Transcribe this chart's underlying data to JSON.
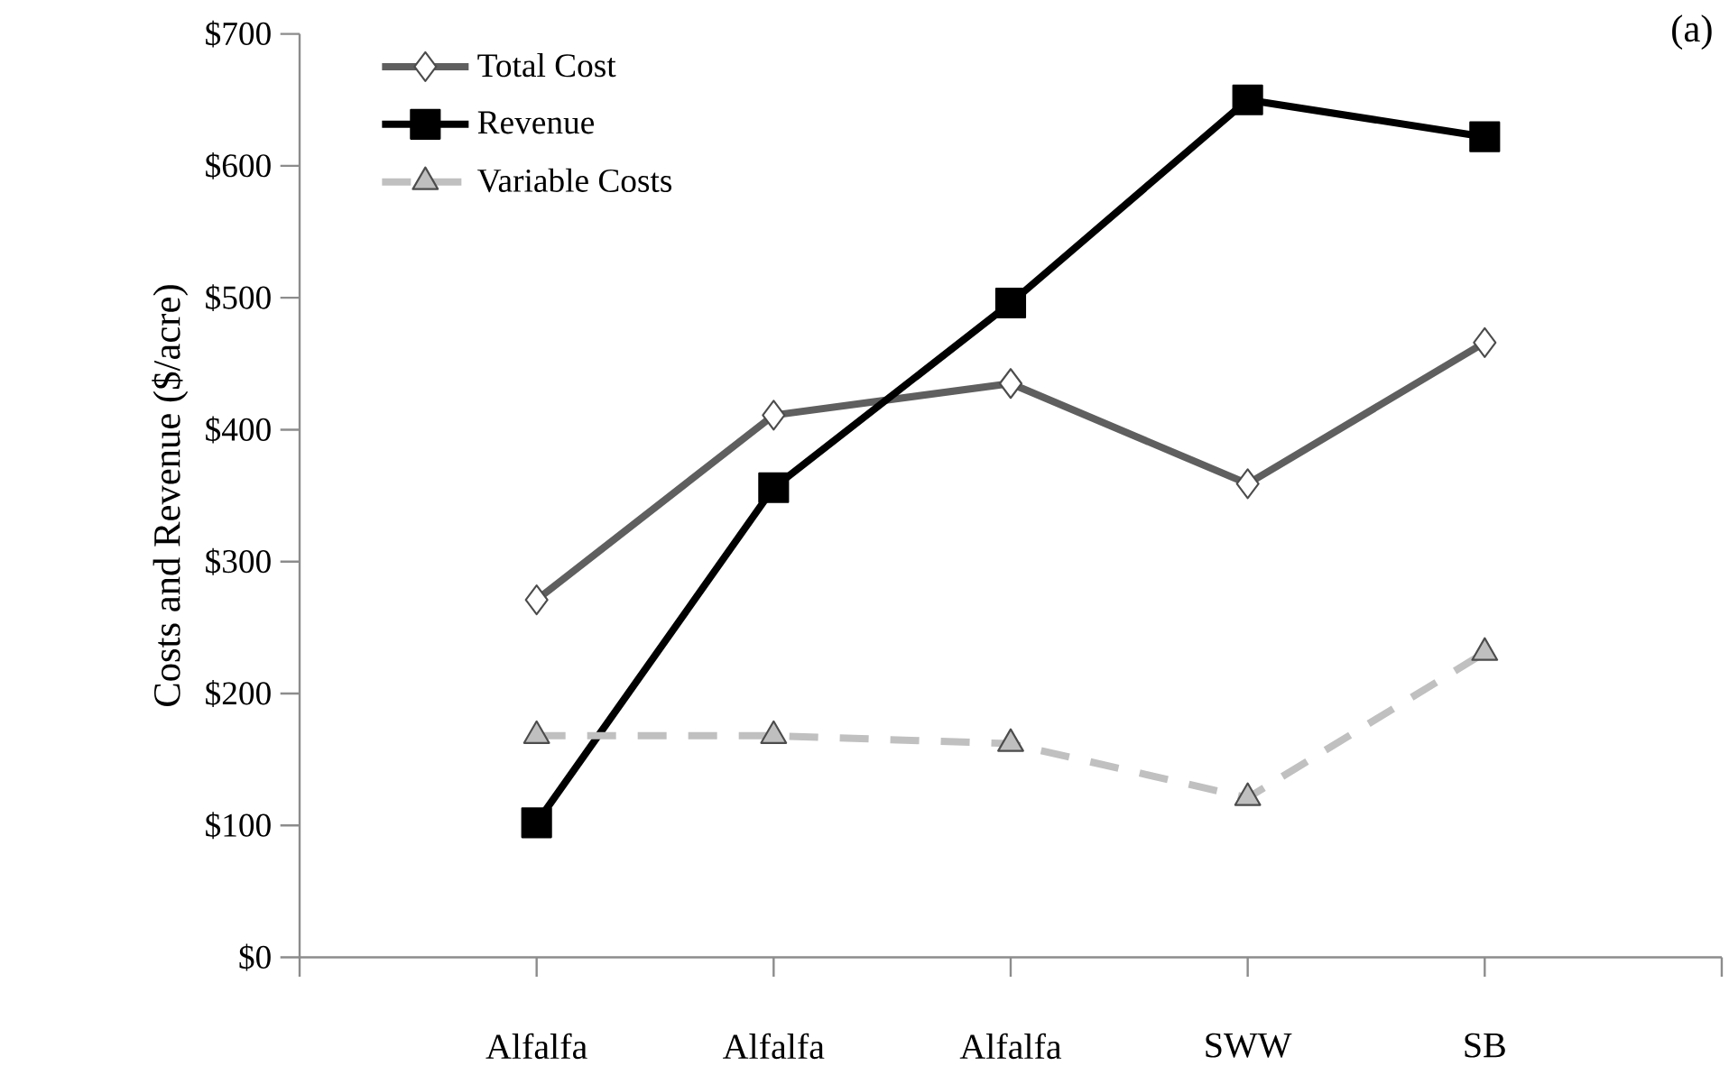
{
  "chart_data": {
    "type": "line",
    "ylabel": "Costs and Revenue ($/acre)",
    "categories": [
      "Alfalfa",
      "Alfalfa",
      "Alfalfa",
      "SWW",
      "SB"
    ],
    "series": [
      {
        "name": "Total Cost",
        "color": "#5f5f5f",
        "marker": "diamond",
        "line_style": "solid",
        "values": [
          271,
          411,
          435,
          359,
          466
        ]
      },
      {
        "name": "Revenue",
        "color": "#000000",
        "marker": "square",
        "line_style": "solid",
        "values": [
          102,
          356,
          496,
          650,
          622
        ]
      },
      {
        "name": "Variable Costs",
        "color": "#c0c0c0",
        "marker": "triangle",
        "line_style": "dashed",
        "values": [
          168,
          168,
          162,
          121,
          231
        ]
      }
    ],
    "ylim": [
      0,
      700
    ],
    "yticks": [
      {
        "value": 0,
        "label": "$0"
      },
      {
        "value": 100,
        "label": "$100"
      },
      {
        "value": 200,
        "label": "$200"
      },
      {
        "value": 300,
        "label": "$300"
      },
      {
        "value": 400,
        "label": "$400"
      },
      {
        "value": 500,
        "label": "$500"
      },
      {
        "value": 600,
        "label": "$600"
      },
      {
        "value": 700,
        "label": "$700"
      }
    ],
    "grid": false,
    "legend": "top left",
    "annotations": [
      "(a)"
    ]
  }
}
